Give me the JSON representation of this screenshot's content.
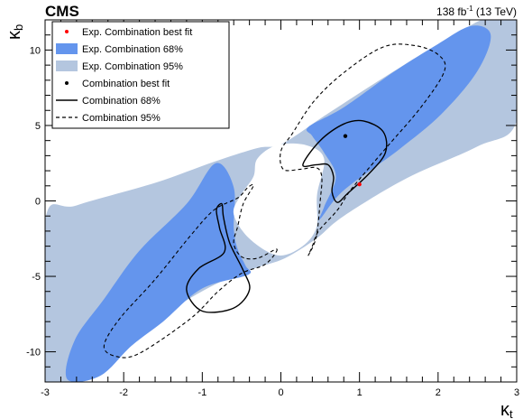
{
  "chart_data": {
    "type": "contour",
    "experiment": "CMS",
    "luminosity_label": "138 fb",
    "luminosity_exponent": "-1",
    "energy_label": " (13 TeV)",
    "xlabel_main": "κ",
    "xlabel_sub": "t",
    "ylabel_main": "κ",
    "ylabel_sub": "b",
    "xlim": [
      -3,
      3
    ],
    "ylim": [
      -12,
      12
    ],
    "xticks": [
      -3,
      -2,
      -1,
      0,
      1,
      2,
      3
    ],
    "yticks": [
      -10,
      -5,
      0,
      5,
      10
    ],
    "xtick_labels": [
      "-3",
      "-2",
      "-1",
      "0",
      "1",
      "2",
      "3"
    ],
    "ytick_labels": [
      "-10",
      "-5",
      "0",
      "5",
      "10"
    ],
    "colors": {
      "exp95": "#b4c6df",
      "exp68": "#6495ed",
      "exp_best_fit": "#ff0000",
      "combination": "#000000"
    },
    "legend": [
      {
        "label": "Exp. Combination best fit",
        "kind": "red-dot"
      },
      {
        "label": "Exp. Combination 68%",
        "kind": "fill-68"
      },
      {
        "label": "Exp. Combination 95%",
        "kind": "fill-95"
      },
      {
        "label": "Combination best fit",
        "kind": "black-dot"
      },
      {
        "label": "Combination 68%",
        "kind": "solid-line"
      },
      {
        "label": "Combination 95%",
        "kind": "dashed-line"
      }
    ],
    "best_fits": {
      "expected": {
        "kt": 1.0,
        "kb": 1.1
      },
      "observed": {
        "kt": 0.82,
        "kb": 4.3
      }
    },
    "regions": {
      "exp95": [
        [
          [
            0.02,
            3.8
          ],
          [
            0.6,
            5.8
          ],
          [
            1.5,
            8.8
          ],
          [
            2.4,
            11.6
          ],
          [
            2.62,
            12
          ],
          [
            3,
            12
          ],
          [
            3,
            5.3
          ],
          [
            2.5,
            3.6
          ],
          [
            1.6,
            1.5
          ],
          [
            0.8,
            -1.0
          ],
          [
            0.45,
            -2.5
          ],
          [
            0.05,
            -3.8
          ],
          [
            -0.35,
            -4.5
          ],
          [
            -0.9,
            -5.7
          ],
          [
            -1.6,
            -7.9
          ],
          [
            -2.35,
            -10.7
          ],
          [
            -2.7,
            -12
          ],
          [
            -3,
            -12
          ],
          [
            -3,
            -1.3
          ],
          [
            -2.6,
            -0.3
          ],
          [
            -1.6,
            1.2
          ],
          [
            -0.85,
            2.6
          ],
          [
            -0.3,
            3.5
          ]
        ]
      ],
      "exp68": [
        [
          [
            0.35,
            4.9
          ],
          [
            0.8,
            6.2
          ],
          [
            1.45,
            8.6
          ],
          [
            2.0,
            10.4
          ],
          [
            2.42,
            11.6
          ],
          [
            2.67,
            11.0
          ],
          [
            2.5,
            8.6
          ],
          [
            2.05,
            5.8
          ],
          [
            1.5,
            3.4
          ],
          [
            0.8,
            0.7
          ],
          [
            0.5,
            -1.2
          ],
          [
            0.55,
            -0.4
          ],
          [
            0.7,
            1.6
          ],
          [
            0.55,
            3.2
          ],
          [
            0.4,
            4.3
          ]
        ],
        [
          [
            -0.42,
            -4.9
          ],
          [
            -1.0,
            -5.8
          ],
          [
            -1.5,
            -8.0
          ],
          [
            -1.9,
            -9.6
          ],
          [
            -2.3,
            -11.6
          ],
          [
            -2.72,
            -11.8
          ],
          [
            -2.62,
            -9.2
          ],
          [
            -2.25,
            -6.5
          ],
          [
            -1.8,
            -3.3
          ],
          [
            -1.2,
            -0.2
          ],
          [
            -0.83,
            2.5
          ],
          [
            -0.6,
            0.9
          ],
          [
            -0.6,
            -1.8
          ],
          [
            -0.55,
            -3.2
          ],
          [
            -0.45,
            -4.3
          ]
        ]
      ],
      "white_hole": [
        [
          [
            0.32,
            3.7
          ],
          [
            0.55,
            2.8
          ],
          [
            0.46,
            0.4
          ],
          [
            0.45,
            -1.8
          ],
          [
            0.25,
            -3.1
          ],
          [
            -0.05,
            -3.6
          ],
          [
            -0.4,
            -2.5
          ],
          [
            -0.6,
            -0.9
          ],
          [
            -0.52,
            0.3
          ],
          [
            -0.35,
            1.6
          ],
          [
            -0.3,
            2.8
          ],
          [
            -0.05,
            3.7
          ]
        ]
      ],
      "comb68": [
        [
          [
            0.28,
            2.4
          ],
          [
            0.5,
            4.0
          ],
          [
            0.8,
            5.1
          ],
          [
            1.05,
            5.3
          ],
          [
            1.3,
            4.6
          ],
          [
            1.33,
            3.2
          ],
          [
            1.12,
            1.8
          ],
          [
            0.85,
            0.5
          ],
          [
            0.72,
            -0.1
          ],
          [
            0.65,
            0.6
          ],
          [
            0.67,
            1.6
          ],
          [
            0.6,
            2.4
          ],
          [
            0.45,
            2.4
          ]
        ],
        [
          [
            -0.72,
            -3.4
          ],
          [
            -1.05,
            -4.5
          ],
          [
            -1.2,
            -5.9
          ],
          [
            -1.0,
            -7.3
          ],
          [
            -0.6,
            -7.1
          ],
          [
            -0.4,
            -5.9
          ],
          [
            -0.48,
            -4.6
          ],
          [
            -0.65,
            -2.8
          ],
          [
            -0.73,
            -1.1
          ],
          [
            -0.75,
            -0.2
          ],
          [
            -0.82,
            -0.6
          ],
          [
            -0.78,
            -1.8
          ]
        ]
      ],
      "comb95": [
        [
          [
            0.03,
            2.1
          ],
          [
            0.0,
            3.3
          ],
          [
            0.15,
            4.5
          ],
          [
            0.42,
            6.6
          ],
          [
            0.8,
            8.5
          ],
          [
            1.3,
            10.2
          ],
          [
            1.7,
            10.3
          ],
          [
            2.0,
            9.7
          ],
          [
            2.08,
            8.6
          ],
          [
            1.78,
            6.2
          ],
          [
            1.32,
            3.4
          ],
          [
            0.9,
            0.8
          ],
          [
            0.72,
            -0.6
          ],
          [
            0.48,
            -2.0
          ],
          [
            0.4,
            -3.0
          ],
          [
            0.35,
            -3.6
          ],
          [
            0.45,
            -2.4
          ],
          [
            0.5,
            0.0
          ],
          [
            0.52,
            1.6
          ],
          [
            0.45,
            2.2
          ],
          [
            0.25,
            2.1
          ]
        ],
        [
          [
            -0.05,
            -3.2
          ],
          [
            -0.2,
            -4.2
          ],
          [
            -0.5,
            -4.8
          ],
          [
            -0.8,
            -6.0
          ],
          [
            -1.15,
            -7.8
          ],
          [
            -1.8,
            -10.1
          ],
          [
            -2.1,
            -10.3
          ],
          [
            -2.25,
            -9.6
          ],
          [
            -2.05,
            -7.8
          ],
          [
            -1.6,
            -5.2
          ],
          [
            -1.15,
            -2.3
          ],
          [
            -0.85,
            -0.6
          ],
          [
            -0.55,
            0.2
          ],
          [
            -0.42,
            0.9
          ],
          [
            -0.35,
            1.0
          ],
          [
            -0.48,
            -0.2
          ],
          [
            -0.55,
            -1.7
          ],
          [
            -0.6,
            -2.8
          ],
          [
            -0.5,
            -3.7
          ],
          [
            -0.3,
            -3.8
          ]
        ]
      ]
    }
  }
}
